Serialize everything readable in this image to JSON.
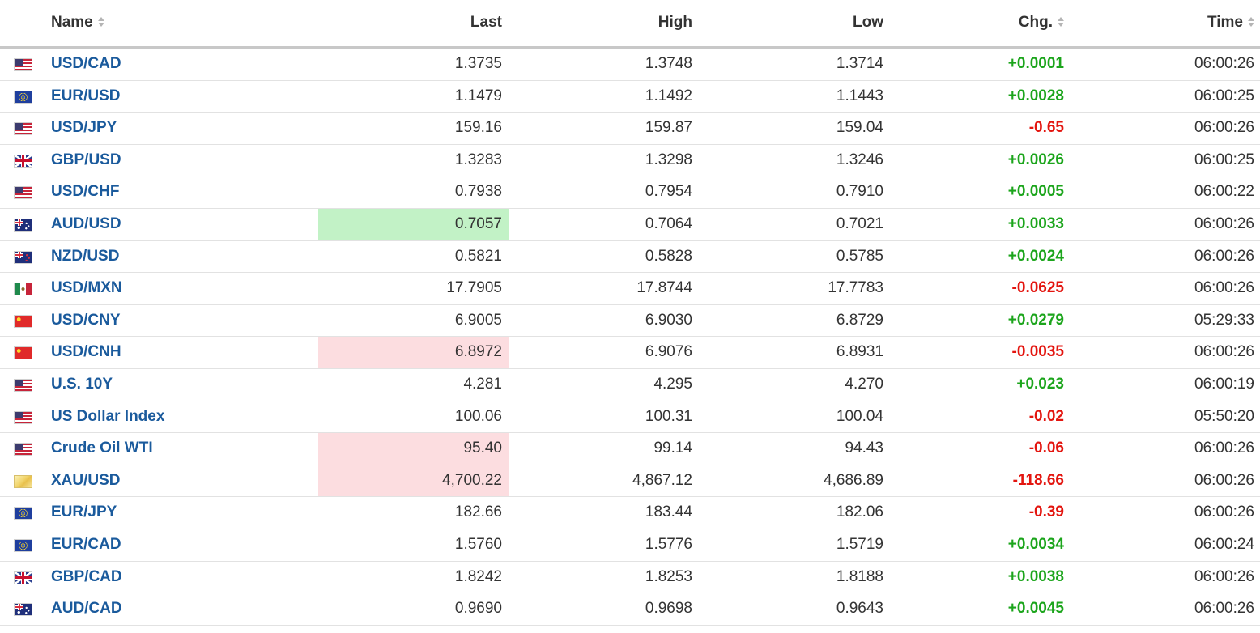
{
  "columns": {
    "name": "Name",
    "last": "Last",
    "high": "High",
    "low": "Low",
    "chg": "Chg.",
    "time": "Time"
  },
  "rows": [
    {
      "name": "USD/CAD",
      "flag": "us-flag-icon",
      "last": "1.3735",
      "high": "1.3748",
      "low": "1.3714",
      "chg": "+0.0001",
      "dir": "up",
      "time": "06:00:26",
      "flash": ""
    },
    {
      "name": "EUR/USD",
      "flag": "eu-flag-icon",
      "last": "1.1479",
      "high": "1.1492",
      "low": "1.1443",
      "chg": "+0.0028",
      "dir": "up",
      "time": "06:00:25",
      "flash": ""
    },
    {
      "name": "USD/JPY",
      "flag": "us-flag-icon",
      "last": "159.16",
      "high": "159.87",
      "low": "159.04",
      "chg": "-0.65",
      "dir": "down",
      "time": "06:00:26",
      "flash": ""
    },
    {
      "name": "GBP/USD",
      "flag": "gb-flag-icon",
      "last": "1.3283",
      "high": "1.3298",
      "low": "1.3246",
      "chg": "+0.0026",
      "dir": "up",
      "time": "06:00:25",
      "flash": ""
    },
    {
      "name": "USD/CHF",
      "flag": "us-flag-icon",
      "last": "0.7938",
      "high": "0.7954",
      "low": "0.7910",
      "chg": "+0.0005",
      "dir": "up",
      "time": "06:00:22",
      "flash": ""
    },
    {
      "name": "AUD/USD",
      "flag": "au-flag-icon",
      "last": "0.7057",
      "high": "0.7064",
      "low": "0.7021",
      "chg": "+0.0033",
      "dir": "up",
      "time": "06:00:26",
      "flash": "up"
    },
    {
      "name": "NZD/USD",
      "flag": "nz-flag-icon",
      "last": "0.5821",
      "high": "0.5828",
      "low": "0.5785",
      "chg": "+0.0024",
      "dir": "up",
      "time": "06:00:26",
      "flash": ""
    },
    {
      "name": "USD/MXN",
      "flag": "mx-flag-icon",
      "last": "17.7905",
      "high": "17.8744",
      "low": "17.7783",
      "chg": "-0.0625",
      "dir": "down",
      "time": "06:00:26",
      "flash": ""
    },
    {
      "name": "USD/CNY",
      "flag": "cn-flag-icon",
      "last": "6.9005",
      "high": "6.9030",
      "low": "6.8729",
      "chg": "+0.0279",
      "dir": "up",
      "time": "05:29:33",
      "flash": ""
    },
    {
      "name": "USD/CNH",
      "flag": "cn-flag-icon",
      "last": "6.8972",
      "high": "6.9076",
      "low": "6.8931",
      "chg": "-0.0035",
      "dir": "down",
      "time": "06:00:26",
      "flash": "down"
    },
    {
      "name": "U.S. 10Y",
      "flag": "us-flag-icon",
      "last": "4.281",
      "high": "4.295",
      "low": "4.270",
      "chg": "+0.023",
      "dir": "up",
      "time": "06:00:19",
      "flash": ""
    },
    {
      "name": "US Dollar Index",
      "flag": "us-flag-icon",
      "last": "100.06",
      "high": "100.31",
      "low": "100.04",
      "chg": "-0.02",
      "dir": "down",
      "time": "05:50:20",
      "flash": ""
    },
    {
      "name": "Crude Oil WTI",
      "flag": "us-flag-icon",
      "last": "95.40",
      "high": "99.14",
      "low": "94.43",
      "chg": "-0.06",
      "dir": "down",
      "time": "06:00:26",
      "flash": "down"
    },
    {
      "name": "XAU/USD",
      "flag": "gold-icon",
      "last": "4,700.22",
      "high": "4,867.12",
      "low": "4,686.89",
      "chg": "-118.66",
      "dir": "down",
      "time": "06:00:26",
      "flash": "down"
    },
    {
      "name": "EUR/JPY",
      "flag": "eu-flag-icon",
      "last": "182.66",
      "high": "183.44",
      "low": "182.06",
      "chg": "-0.39",
      "dir": "down",
      "time": "06:00:26",
      "flash": ""
    },
    {
      "name": "EUR/CAD",
      "flag": "eu-flag-icon",
      "last": "1.5760",
      "high": "1.5776",
      "low": "1.5719",
      "chg": "+0.0034",
      "dir": "up",
      "time": "06:00:24",
      "flash": ""
    },
    {
      "name": "GBP/CAD",
      "flag": "gb-flag-icon",
      "last": "1.8242",
      "high": "1.8253",
      "low": "1.8188",
      "chg": "+0.0038",
      "dir": "up",
      "time": "06:00:26",
      "flash": ""
    },
    {
      "name": "AUD/CAD",
      "flag": "au-flag-icon",
      "last": "0.9690",
      "high": "0.9698",
      "low": "0.9643",
      "chg": "+0.0045",
      "dir": "up",
      "time": "06:00:26",
      "flash": ""
    }
  ],
  "colors": {
    "up": "#1ca51c",
    "down": "#e3150f",
    "link": "#1a5a9c",
    "flash_up": "#c2f2c6",
    "flash_down": "#fcdde0"
  }
}
